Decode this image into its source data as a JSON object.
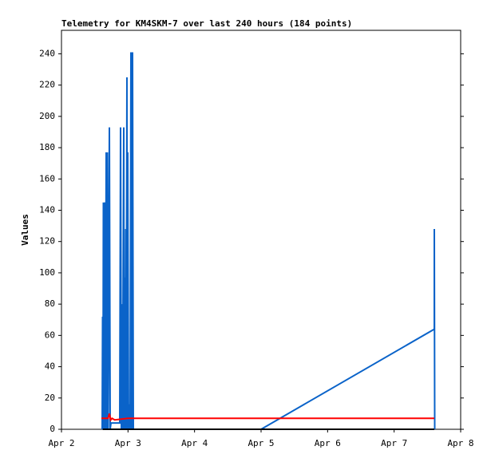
{
  "chart_data": {
    "type": "line",
    "title": "Telemetry for KM4SKM-7 over last 240 hours (184 points)",
    "y_label": "Values",
    "xlim": [
      2,
      8
    ],
    "xticks": [
      {
        "value": 2,
        "label": "Apr 2"
      },
      {
        "value": 3,
        "label": "Apr 3"
      },
      {
        "value": 4,
        "label": "Apr 4"
      },
      {
        "value": 5,
        "label": "Apr 5"
      },
      {
        "value": 6,
        "label": "Apr 6"
      },
      {
        "value": 7,
        "label": "Apr 7"
      },
      {
        "value": 8,
        "label": "Apr 8"
      }
    ],
    "ylim": [
      0,
      255
    ],
    "yticks": [
      0,
      20,
      40,
      60,
      80,
      100,
      120,
      140,
      160,
      180,
      200,
      220,
      240
    ],
    "grid": false,
    "series": [
      {
        "color": "#0a63c9",
        "x": [
          2.612,
          2.618,
          2.624,
          2.63,
          2.636,
          2.648,
          2.66,
          2.672,
          2.684,
          2.69,
          2.702,
          2.72,
          2.732,
          2.744,
          2.876,
          2.888,
          2.9,
          2.912,
          2.918,
          2.936,
          2.942,
          2.948,
          2.96,
          2.966,
          2.972,
          2.984,
          2.99,
          2.996,
          3.008,
          3.02,
          3.032,
          3.044,
          3.056,
          3.068,
          3.08,
          5.0,
          7.604,
          7.604,
          7.61
        ],
        "values": [
          0,
          72,
          0,
          145,
          0,
          145,
          0,
          177,
          0,
          177,
          0,
          193,
          0,
          4,
          4,
          193,
          0,
          80,
          0,
          193,
          0,
          97,
          0,
          128,
          0,
          225,
          0,
          177,
          0,
          16,
          0,
          241,
          0,
          241,
          0,
          0,
          64,
          128,
          0
        ]
      },
      {
        "color": "#ff0000",
        "x": [
          2.6,
          2.7,
          2.72,
          2.74,
          2.76,
          2.8,
          3.0,
          7.604
        ],
        "values": [
          7,
          7,
          10,
          6,
          7,
          6,
          7,
          7
        ]
      },
      {
        "color": "#000000",
        "x": [
          2.62,
          7.604
        ],
        "values": [
          0,
          0
        ]
      }
    ]
  }
}
